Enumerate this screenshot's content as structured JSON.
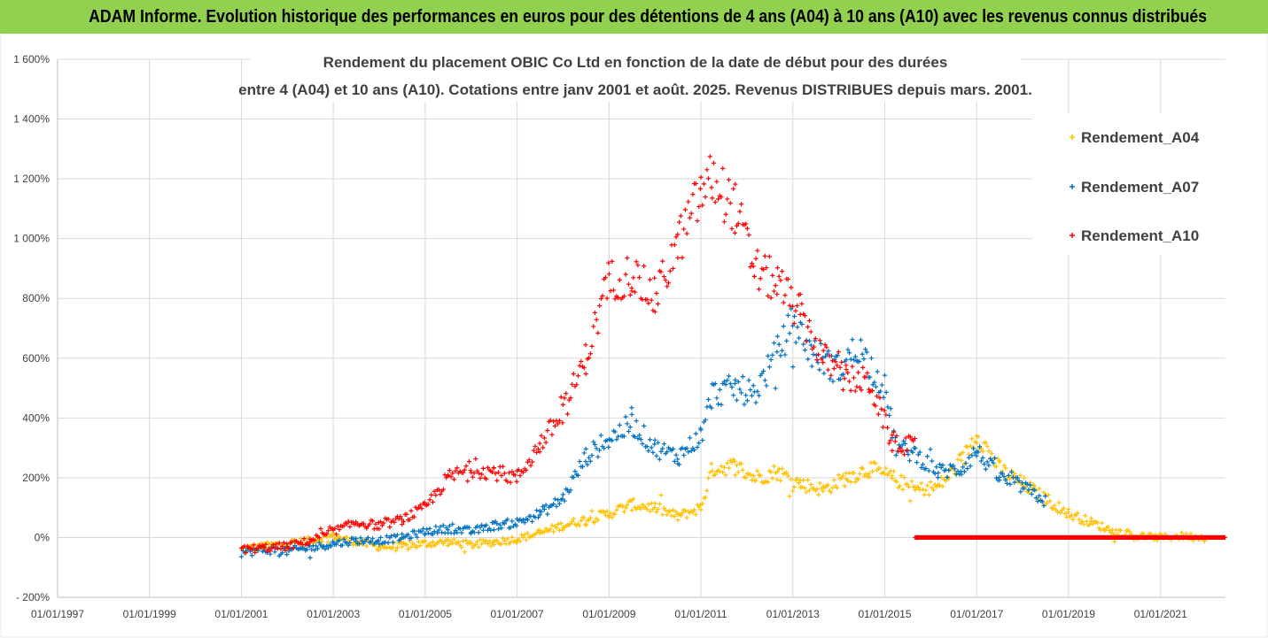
{
  "banner": {
    "title": "ADAM Informe. Evolution historique des performances en euros pour des détentions de 4 ans (A04) à 10 ans (A10) avec les revenus connus distribués"
  },
  "colors": {
    "banner": "#92d050",
    "A04": "#ffc000",
    "A07": "#0070c0",
    "A10": "#ff0000",
    "grid": "#d9d9d9"
  },
  "chart_data": {
    "type": "scatter",
    "title_lines": [
      "Rendement du placement OBIC Co Ltd en fonction de la date de début pour des durées",
      "entre 4 (A04) et 10 ans (A10). Cotations entre janv 2001 et août. 2025. Revenus DISTRIBUES depuis mars. 2001."
    ],
    "x_range": [
      "1997-01-01",
      "2022-06-01"
    ],
    "y_range_percent": [
      -200,
      1600
    ],
    "y_ticks": [
      "1 600%",
      "1 400%",
      "1 200%",
      "1 000%",
      "800%",
      "600%",
      "400%",
      "200%",
      "0%",
      "- 200%"
    ],
    "y_tick_values": [
      1600,
      1400,
      1200,
      1000,
      800,
      600,
      400,
      200,
      0,
      -200
    ],
    "x_ticks": [
      "01/01/1997",
      "01/01/1999",
      "01/01/2001",
      "01/01/2003",
      "01/01/2005",
      "01/01/2007",
      "01/01/2009",
      "01/01/2011",
      "01/01/2013",
      "01/01/2015",
      "01/01/2017",
      "01/01/2019",
      "01/01/2021"
    ],
    "x_tick_dates": [
      "1997-01-01",
      "1999-01-01",
      "2001-01-01",
      "2003-01-01",
      "2005-01-01",
      "2007-01-01",
      "2009-01-01",
      "2011-01-01",
      "2013-01-01",
      "2015-01-01",
      "2017-01-01",
      "2019-01-01",
      "2021-01-01"
    ],
    "grid": true,
    "legend_position": "top-right",
    "series": [
      {
        "name": "Rendement_A04",
        "color": "#ffc000",
        "points": [
          [
            "2001-01-01",
            -40
          ],
          [
            "2001-07-01",
            -30
          ],
          [
            "2002-01-01",
            -20
          ],
          [
            "2002-07-01",
            -10
          ],
          [
            "2003-01-01",
            5
          ],
          [
            "2003-07-01",
            -15
          ],
          [
            "2004-01-01",
            -30
          ],
          [
            "2004-07-01",
            -30
          ],
          [
            "2005-01-01",
            -20
          ],
          [
            "2005-07-01",
            -15
          ],
          [
            "2006-01-01",
            -25
          ],
          [
            "2006-07-01",
            -15
          ],
          [
            "2007-01-01",
            -5
          ],
          [
            "2007-07-01",
            15
          ],
          [
            "2008-01-01",
            40
          ],
          [
            "2008-07-01",
            60
          ],
          [
            "2009-01-01",
            80
          ],
          [
            "2009-07-01",
            110
          ],
          [
            "2010-01-01",
            100
          ],
          [
            "2010-07-01",
            70
          ],
          [
            "2011-01-01",
            100
          ],
          [
            "2011-04-01",
            230
          ],
          [
            "2011-10-01",
            240
          ],
          [
            "2012-03-01",
            200
          ],
          [
            "2012-09-01",
            220
          ],
          [
            "2013-03-01",
            180
          ],
          [
            "2013-09-01",
            160
          ],
          [
            "2014-03-01",
            200
          ],
          [
            "2014-09-01",
            230
          ],
          [
            "2015-03-01",
            200
          ],
          [
            "2015-09-01",
            160
          ],
          [
            "2016-03-01",
            170
          ],
          [
            "2016-09-01",
            250
          ],
          [
            "2017-01-01",
            350
          ],
          [
            "2017-07-01",
            230
          ],
          [
            "2018-01-01",
            180
          ],
          [
            "2018-07-01",
            130
          ],
          [
            "2019-01-01",
            80
          ],
          [
            "2019-07-01",
            50
          ],
          [
            "2020-01-01",
            20
          ],
          [
            "2020-07-01",
            5
          ],
          [
            "2021-01-01",
            0
          ],
          [
            "2021-07-01",
            5
          ],
          [
            "2022-01-01",
            0
          ]
        ]
      },
      {
        "name": "Rendement_A07",
        "color": "#0070c0",
        "points": [
          [
            "2001-01-01",
            -50
          ],
          [
            "2001-07-01",
            -40
          ],
          [
            "2002-01-01",
            -45
          ],
          [
            "2002-07-01",
            -35
          ],
          [
            "2003-01-01",
            -20
          ],
          [
            "2003-07-01",
            -10
          ],
          [
            "2004-01-01",
            -10
          ],
          [
            "2004-07-01",
            0
          ],
          [
            "2005-01-01",
            20
          ],
          [
            "2005-07-01",
            30
          ],
          [
            "2006-01-01",
            20
          ],
          [
            "2006-07-01",
            40
          ],
          [
            "2007-01-01",
            50
          ],
          [
            "2007-07-01",
            80
          ],
          [
            "2008-01-01",
            130
          ],
          [
            "2008-07-01",
            270
          ],
          [
            "2009-01-01",
            330
          ],
          [
            "2009-07-01",
            380
          ],
          [
            "2010-01-01",
            300
          ],
          [
            "2010-07-01",
            270
          ],
          [
            "2011-01-01",
            340
          ],
          [
            "2011-04-01",
            480
          ],
          [
            "2011-10-01",
            500
          ],
          [
            "2012-03-01",
            480
          ],
          [
            "2012-09-01",
            620
          ],
          [
            "2013-01-01",
            720
          ],
          [
            "2013-06-01",
            620
          ],
          [
            "2014-01-01",
            560
          ],
          [
            "2014-06-01",
            640
          ],
          [
            "2015-01-01",
            500
          ],
          [
            "2015-04-01",
            300
          ],
          [
            "2015-09-01",
            280
          ],
          [
            "2016-03-01",
            220
          ],
          [
            "2016-09-01",
            230
          ],
          [
            "2017-01-01",
            290
          ],
          [
            "2017-07-01",
            200
          ],
          [
            "2018-01-01",
            170
          ],
          [
            "2018-07-01",
            120
          ]
        ]
      },
      {
        "name": "Rendement_A10",
        "color": "#ff0000",
        "points": [
          [
            "2001-01-01",
            -40
          ],
          [
            "2001-07-01",
            -35
          ],
          [
            "2002-01-01",
            -30
          ],
          [
            "2002-07-01",
            -10
          ],
          [
            "2003-01-01",
            20
          ],
          [
            "2003-07-01",
            50
          ],
          [
            "2004-01-01",
            40
          ],
          [
            "2004-07-01",
            60
          ],
          [
            "2005-01-01",
            100
          ],
          [
            "2005-07-01",
            200
          ],
          [
            "2006-01-01",
            230
          ],
          [
            "2006-07-01",
            220
          ],
          [
            "2007-01-01",
            200
          ],
          [
            "2007-07-01",
            310
          ],
          [
            "2008-01-01",
            420
          ],
          [
            "2008-07-01",
            600
          ],
          [
            "2009-01-01",
            860
          ],
          [
            "2009-07-01",
            880
          ],
          [
            "2010-01-01",
            800
          ],
          [
            "2010-07-01",
            980
          ],
          [
            "2011-01-01",
            1150
          ],
          [
            "2011-04-01",
            1200
          ],
          [
            "2011-10-01",
            1100
          ],
          [
            "2012-03-01",
            900
          ],
          [
            "2012-09-01",
            850
          ],
          [
            "2013-03-01",
            750
          ],
          [
            "2013-09-01",
            600
          ],
          [
            "2014-03-01",
            530
          ],
          [
            "2014-09-01",
            520
          ],
          [
            "2015-03-01",
            320
          ],
          [
            "2015-09-01",
            300
          ]
        ],
        "flat_points": [
          [
            "2015-09-01",
            0
          ],
          [
            "2022-06-01",
            0
          ]
        ]
      }
    ]
  }
}
